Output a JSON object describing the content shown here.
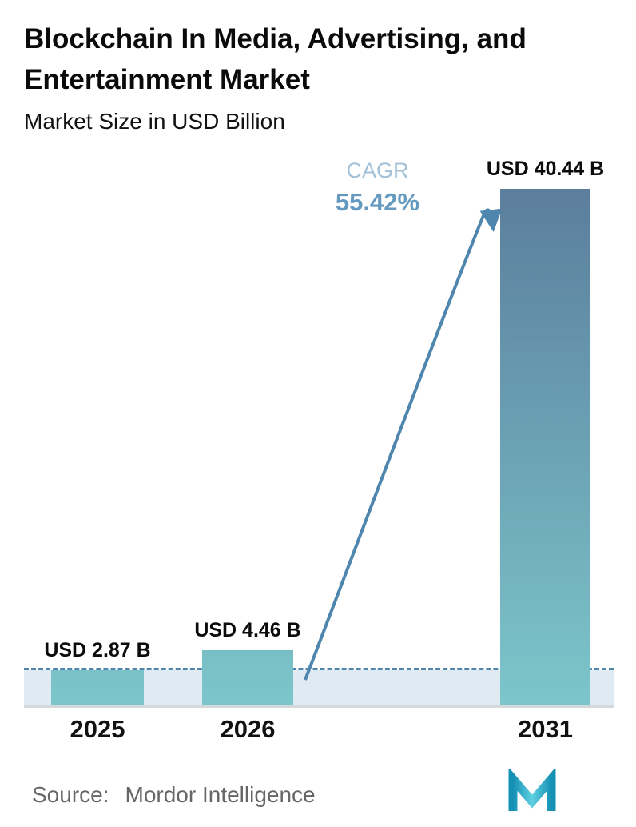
{
  "header": {
    "title": "Blockchain In Media, Advertising, and Entertainment Market",
    "subtitle": "Market Size in USD Billion"
  },
  "chart_data": {
    "type": "bar",
    "categories": [
      "2025",
      "2026",
      "2031"
    ],
    "values": [
      2.87,
      4.46,
      40.44
    ],
    "value_labels": [
      "USD 2.87 B",
      "USD 4.46 B",
      "USD 40.44 B"
    ],
    "title": "Blockchain In Media, Advertising, and Entertainment Market",
    "ylabel": "Market Size in USD Billion",
    "xlabel": "",
    "ylim": [
      0,
      40.44
    ],
    "grid": "off",
    "legend": "none",
    "dashed_reference_value": 2.87,
    "annotations": {
      "cagr_label": "CAGR",
      "cagr_value": "55.42%",
      "arrow": "from 2026 bar to 2031 bar"
    }
  },
  "footer": {
    "source_label": "Source:",
    "source_name": "Mordor Intelligence",
    "logo": "mordor-intelligence-logo"
  },
  "colors": {
    "bar-top": "#5b7e9d",
    "bar-bottom": "#7cc6cb",
    "accent-blue": "#4e86ad",
    "band": "#dfeaf3",
    "cagr-label": "#a3c2d8",
    "cagr-value": "#6699bf",
    "axis": "#d4d9dc",
    "text": "#0b0b0b",
    "source-text": "#666666",
    "logo-dark": "#1390b4",
    "logo-light": "#5fd0e0"
  }
}
